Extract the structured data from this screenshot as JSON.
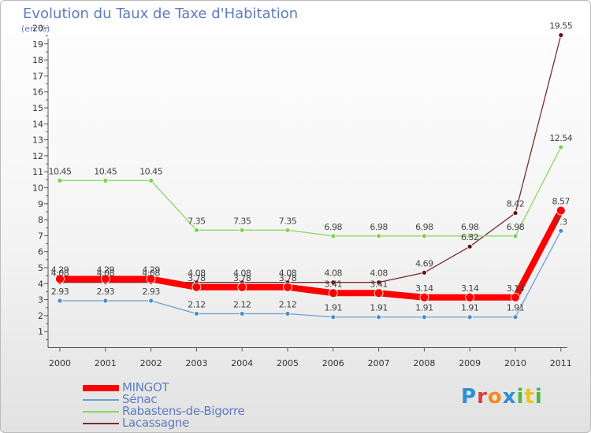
{
  "title": "Evolution du Taux de Taxe d'Habitation",
  "unit_label": "(en %)",
  "logo": {
    "text": "Proxiti",
    "letters": [
      {
        "c": "P",
        "color": "#2d8fd6"
      },
      {
        "c": "r",
        "color": "#e23b3b"
      },
      {
        "c": "o",
        "color": "#f28a1e"
      },
      {
        "c": "x",
        "color": "#2d8fd6"
      },
      {
        "c": "i",
        "color": "#4cb848"
      },
      {
        "c": "t",
        "color": "#f2c21e"
      },
      {
        "c": "i",
        "color": "#4cb848"
      }
    ]
  },
  "chart_data": {
    "type": "line",
    "x": [
      "2000",
      "2001",
      "2002",
      "2003",
      "2004",
      "2005",
      "2006",
      "2007",
      "2008",
      "2009",
      "2010",
      "2011"
    ],
    "ylim": [
      0,
      20
    ],
    "yticks": [
      1,
      2,
      3,
      4,
      5,
      6,
      7,
      8,
      9,
      10,
      11,
      12,
      13,
      14,
      15,
      16,
      17,
      18,
      19,
      20
    ],
    "grid": false,
    "legend_position": "bottom-left",
    "series": [
      {
        "name": "Lacassagne",
        "color": "#7b2d2d",
        "width": 1.3,
        "marker_fill": "#6b1010",
        "marker_r": 3,
        "values": [
          4.08,
          4.08,
          4.08,
          4.08,
          4.08,
          4.08,
          4.08,
          4.08,
          4.69,
          6.32,
          8.42,
          19.55
        ],
        "labels": [
          "4.08",
          "4.08",
          "4.08",
          "4.08",
          "4.08",
          "4.08",
          "4.08",
          "4.08",
          "4.69",
          "6.32",
          "8.42",
          "19.55"
        ]
      },
      {
        "name": "Rabastens-de-Bigorre",
        "color": "#88d860",
        "width": 1.3,
        "marker_fill": "#7fd04a",
        "marker_r": 3,
        "values": [
          10.45,
          10.45,
          10.45,
          7.35,
          7.35,
          7.35,
          6.98,
          6.98,
          6.98,
          6.98,
          6.98,
          12.54
        ],
        "labels": [
          "10.45",
          "10.45",
          "10.45",
          "7.35",
          "7.35",
          "7.35",
          "6.98",
          "6.98",
          "6.98",
          "6.98",
          "6.98",
          "12.54"
        ]
      },
      {
        "name": "Sénac",
        "color": "#6d9fcf",
        "width": 1.3,
        "marker_fill": "#4a8ed0",
        "marker_r": 3,
        "values": [
          2.93,
          2.93,
          2.93,
          2.12,
          2.12,
          2.12,
          1.91,
          1.91,
          1.91,
          1.91,
          1.91,
          7.3
        ],
        "labels": [
          "2.93",
          "2.93",
          "2.93",
          "2.12",
          "2.12",
          "2.12",
          "1.91",
          "1.91",
          "1.91",
          "1.91",
          "1.91",
          "7.3"
        ]
      },
      {
        "name": "MINGOT",
        "color": "#ff0000",
        "width": 8,
        "marker_fill": "#ff0000",
        "marker_r": 5.5,
        "values": [
          4.29,
          4.29,
          4.29,
          3.78,
          3.78,
          3.78,
          3.41,
          3.41,
          3.14,
          3.14,
          3.14,
          8.57
        ],
        "labels": [
          "4.29",
          "4.29",
          "4.29",
          "3.78",
          "3.78",
          "3.78",
          "3.41",
          "3.41",
          "3.14",
          "3.14",
          "3.14",
          "8.57"
        ]
      }
    ],
    "legend_order": [
      "MINGOT",
      "Sénac",
      "Rabastens-de-Bigorre",
      "Lacassagne"
    ]
  }
}
